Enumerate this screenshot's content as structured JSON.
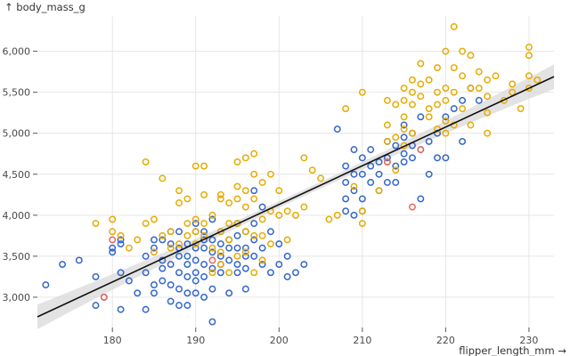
{
  "chart_data": {
    "type": "scatter",
    "xlabel": "flipper_length_mm →",
    "ylabel": "↑ body_mass_g",
    "xlim": [
      171,
      233
    ],
    "ylim": [
      2630,
      6430
    ],
    "x_ticks": [
      180,
      190,
      200,
      210,
      220,
      230
    ],
    "x_tick_labels": [
      "180",
      "190",
      "200",
      "210",
      "220",
      "230"
    ],
    "y_ticks": [
      3000,
      3500,
      4000,
      4500,
      5000,
      5500,
      6000
    ],
    "y_tick_labels": [
      "3,000",
      "3,500",
      "4,000",
      "4,500",
      "5,000",
      "5,500",
      "6,000"
    ],
    "grid": true,
    "colors": {
      "blue": "#3366cc",
      "orange": "#e6ab02",
      "red": "#e8685b",
      "line": "#111111",
      "band": "#d9d9d9"
    },
    "regression": {
      "x": [
        171,
        233
      ],
      "y": [
        2760,
        5690
      ]
    },
    "series": [
      {
        "color_key": "blue",
        "points": [
          [
            172,
            3150
          ],
          [
            174,
            3400
          ],
          [
            176,
            3450
          ],
          [
            178,
            3250
          ],
          [
            178,
            2900
          ],
          [
            179,
            3000
          ],
          [
            180,
            3550
          ],
          [
            180,
            3600
          ],
          [
            181,
            3700
          ],
          [
            181,
            3650
          ],
          [
            181,
            3300
          ],
          [
            181,
            2850
          ],
          [
            182,
            3200
          ],
          [
            183,
            3050
          ],
          [
            184,
            3500
          ],
          [
            184,
            3300
          ],
          [
            184,
            2850
          ],
          [
            185,
            3700
          ],
          [
            185,
            3600
          ],
          [
            185,
            3150
          ],
          [
            185,
            3050
          ],
          [
            186,
            3700
          ],
          [
            186,
            3450
          ],
          [
            186,
            3350
          ],
          [
            186,
            3200
          ],
          [
            187,
            3800
          ],
          [
            187,
            3650
          ],
          [
            187,
            3400
          ],
          [
            187,
            3150
          ],
          [
            187,
            2950
          ],
          [
            188,
            3800
          ],
          [
            188,
            3600
          ],
          [
            188,
            3500
          ],
          [
            188,
            3300
          ],
          [
            188,
            3100
          ],
          [
            188,
            2900
          ],
          [
            189,
            3650
          ],
          [
            189,
            3500
          ],
          [
            189,
            3400
          ],
          [
            189,
            3250
          ],
          [
            189,
            3050
          ],
          [
            189,
            2900
          ],
          [
            190,
            3900
          ],
          [
            190,
            3800
          ],
          [
            190,
            3600
          ],
          [
            190,
            3450
          ],
          [
            190,
            3300
          ],
          [
            190,
            3200
          ],
          [
            190,
            3050
          ],
          [
            191,
            3800
          ],
          [
            191,
            3700
          ],
          [
            191,
            3600
          ],
          [
            191,
            3400
          ],
          [
            191,
            3250
          ],
          [
            191,
            3000
          ],
          [
            192,
            3950
          ],
          [
            192,
            3700
          ],
          [
            192,
            3550
          ],
          [
            192,
            3350
          ],
          [
            192,
            3100
          ],
          [
            192,
            2700
          ],
          [
            193,
            3800
          ],
          [
            193,
            3650
          ],
          [
            193,
            3500
          ],
          [
            193,
            3400
          ],
          [
            193,
            3300
          ],
          [
            194,
            3700
          ],
          [
            194,
            3600
          ],
          [
            194,
            3450
          ],
          [
            194,
            3050
          ],
          [
            195,
            3900
          ],
          [
            195,
            3750
          ],
          [
            195,
            3600
          ],
          [
            195,
            3400
          ],
          [
            195,
            3300
          ],
          [
            196,
            3800
          ],
          [
            196,
            3600
          ],
          [
            196,
            3500
          ],
          [
            196,
            3350
          ],
          [
            196,
            3100
          ],
          [
            197,
            4300
          ],
          [
            197,
            3900
          ],
          [
            197,
            3700
          ],
          [
            197,
            3500
          ],
          [
            198,
            4100
          ],
          [
            198,
            3600
          ],
          [
            198,
            3400
          ],
          [
            199,
            3800
          ],
          [
            199,
            3300
          ],
          [
            200,
            3650
          ],
          [
            200,
            3400
          ],
          [
            201,
            3500
          ],
          [
            201,
            3250
          ],
          [
            202,
            3300
          ],
          [
            203,
            3400
          ],
          [
            207,
            5050
          ],
          [
            208,
            4600
          ],
          [
            208,
            4400
          ],
          [
            208,
            4200
          ],
          [
            208,
            4050
          ],
          [
            209,
            4800
          ],
          [
            209,
            4500
          ],
          [
            209,
            4300
          ],
          [
            209,
            4000
          ],
          [
            210,
            4700
          ],
          [
            210,
            4500
          ],
          [
            210,
            4200
          ],
          [
            210,
            4050
          ],
          [
            211,
            4800
          ],
          [
            211,
            4600
          ],
          [
            211,
            4400
          ],
          [
            212,
            4650
          ],
          [
            212,
            4500
          ],
          [
            212,
            4300
          ],
          [
            213,
            4900
          ],
          [
            213,
            4700
          ],
          [
            213,
            4400
          ],
          [
            214,
            4850
          ],
          [
            214,
            4600
          ],
          [
            214,
            4400
          ],
          [
            215,
            5100
          ],
          [
            215,
            4950
          ],
          [
            215,
            4750
          ],
          [
            215,
            4650
          ],
          [
            216,
            5000
          ],
          [
            216,
            4850
          ],
          [
            216,
            4700
          ],
          [
            217,
            5200
          ],
          [
            217,
            4800
          ],
          [
            217,
            4200
          ],
          [
            218,
            4900
          ],
          [
            218,
            4500
          ],
          [
            219,
            5000
          ],
          [
            219,
            4700
          ],
          [
            220,
            5200
          ],
          [
            220,
            4700
          ],
          [
            221,
            5300
          ],
          [
            222,
            4900
          ],
          [
            222,
            5400
          ],
          [
            223,
            5550
          ],
          [
            224,
            5400
          ]
        ]
      },
      {
        "color_key": "orange",
        "points": [
          [
            178,
            3900
          ],
          [
            180,
            3950
          ],
          [
            180,
            3800
          ],
          [
            181,
            3750
          ],
          [
            182,
            3600
          ],
          [
            183,
            3700
          ],
          [
            184,
            4650
          ],
          [
            184,
            3900
          ],
          [
            185,
            3950
          ],
          [
            185,
            3550
          ],
          [
            186,
            4450
          ],
          [
            186,
            3750
          ],
          [
            187,
            3800
          ],
          [
            187,
            3600
          ],
          [
            188,
            4300
          ],
          [
            188,
            4150
          ],
          [
            188,
            3650
          ],
          [
            189,
            4200
          ],
          [
            189,
            3900
          ],
          [
            189,
            3750
          ],
          [
            190,
            4600
          ],
          [
            190,
            3950
          ],
          [
            190,
            3800
          ],
          [
            190,
            3650
          ],
          [
            191,
            4600
          ],
          [
            191,
            4250
          ],
          [
            191,
            3900
          ],
          [
            191,
            3750
          ],
          [
            192,
            4000
          ],
          [
            192,
            3600
          ],
          [
            192,
            3300
          ],
          [
            193,
            4250
          ],
          [
            193,
            4200
          ],
          [
            193,
            3800
          ],
          [
            193,
            3550
          ],
          [
            193,
            3400
          ],
          [
            194,
            4150
          ],
          [
            194,
            3900
          ],
          [
            194,
            3700
          ],
          [
            194,
            3300
          ],
          [
            195,
            4650
          ],
          [
            195,
            4350
          ],
          [
            195,
            4200
          ],
          [
            195,
            3900
          ],
          [
            195,
            3500
          ],
          [
            196,
            4700
          ],
          [
            196,
            4300
          ],
          [
            196,
            4100
          ],
          [
            196,
            3800
          ],
          [
            196,
            3550
          ],
          [
            197,
            4750
          ],
          [
            197,
            4500
          ],
          [
            197,
            4200
          ],
          [
            197,
            3750
          ],
          [
            197,
            3300
          ],
          [
            198,
            4400
          ],
          [
            198,
            3950
          ],
          [
            198,
            3750
          ],
          [
            198,
            3450
          ],
          [
            199,
            4500
          ],
          [
            199,
            4050
          ],
          [
            199,
            3650
          ],
          [
            200,
            4300
          ],
          [
            200,
            4000
          ],
          [
            201,
            4050
          ],
          [
            201,
            3700
          ],
          [
            202,
            4000
          ],
          [
            203,
            4700
          ],
          [
            203,
            4100
          ],
          [
            204,
            4550
          ],
          [
            205,
            4450
          ],
          [
            206,
            3950
          ],
          [
            207,
            4000
          ],
          [
            208,
            5300
          ],
          [
            209,
            4350
          ],
          [
            210,
            5500
          ],
          [
            210,
            3900
          ],
          [
            210,
            4050
          ],
          [
            212,
            4300
          ],
          [
            213,
            5400
          ],
          [
            213,
            5100
          ],
          [
            213,
            4900
          ],
          [
            213,
            4650
          ],
          [
            214,
            5350
          ],
          [
            214,
            4950
          ],
          [
            214,
            4550
          ],
          [
            215,
            5550
          ],
          [
            215,
            5400
          ],
          [
            215,
            5200
          ],
          [
            215,
            5050
          ],
          [
            215,
            4850
          ],
          [
            216,
            5650
          ],
          [
            216,
            5500
          ],
          [
            216,
            5350
          ],
          [
            216,
            5000
          ],
          [
            217,
            5850
          ],
          [
            217,
            5600
          ],
          [
            217,
            5450
          ],
          [
            218,
            5650
          ],
          [
            218,
            5300
          ],
          [
            218,
            5200
          ],
          [
            219,
            5800
          ],
          [
            219,
            5500
          ],
          [
            219,
            5350
          ],
          [
            219,
            5050
          ],
          [
            220,
            6000
          ],
          [
            220,
            5550
          ],
          [
            220,
            5400
          ],
          [
            220,
            5150
          ],
          [
            220,
            5000
          ],
          [
            221,
            6300
          ],
          [
            221,
            5800
          ],
          [
            221,
            5500
          ],
          [
            221,
            5100
          ],
          [
            222,
            6000
          ],
          [
            222,
            5700
          ],
          [
            222,
            5300
          ],
          [
            223,
            5950
          ],
          [
            223,
            5550
          ],
          [
            223,
            5100
          ],
          [
            224,
            5750
          ],
          [
            224,
            5550
          ],
          [
            225,
            5650
          ],
          [
            225,
            5450
          ],
          [
            225,
            5250
          ],
          [
            225,
            5000
          ],
          [
            226,
            5700
          ],
          [
            227,
            5400
          ],
          [
            228,
            5600
          ],
          [
            228,
            5500
          ],
          [
            229,
            5300
          ],
          [
            230,
            6050
          ],
          [
            230,
            5950
          ],
          [
            230,
            5700
          ],
          [
            230,
            5550
          ],
          [
            231,
            5650
          ]
        ]
      },
      {
        "color_key": "red",
        "points": [
          [
            179,
            3000
          ],
          [
            180,
            3700
          ],
          [
            192,
            3450
          ],
          [
            216,
            4100
          ],
          [
            217,
            4800
          ],
          [
            213,
            4650
          ]
        ]
      }
    ]
  }
}
